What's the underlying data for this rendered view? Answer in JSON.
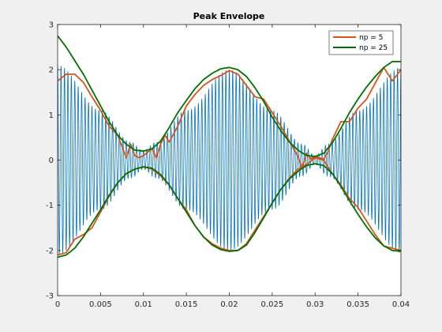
{
  "chart_data": {
    "type": "line",
    "title": "Peak Envelope",
    "xlabel": "",
    "ylabel": "",
    "xlim": [
      0,
      0.04
    ],
    "ylim": [
      -3,
      3
    ],
    "x_ticks": [
      "0",
      "0.005",
      "0.01",
      "0.015",
      "0.02",
      "0.025",
      "0.03",
      "0.035",
      "0.04"
    ],
    "y_ticks": [
      "-3",
      "-2",
      "-1",
      "0",
      "1",
      "2",
      "3"
    ],
    "grid": false,
    "legend_position": "top-right",
    "signal": {
      "description_values": "oscillating blue signal, carrier ~2500 Hz, AM envelope",
      "color": "#0072bd",
      "samples": [
        {
          "x": 0.0,
          "amp": 2.1
        },
        {
          "x": 0.005,
          "amp": 1.1
        },
        {
          "x": 0.0085,
          "amp": 0.4
        },
        {
          "x": 0.01,
          "amp": 0.2
        },
        {
          "x": 0.0115,
          "amp": 0.4
        },
        {
          "x": 0.015,
          "amp": 1.1
        },
        {
          "x": 0.02,
          "amp": 2.0
        },
        {
          "x": 0.025,
          "amp": 1.1
        },
        {
          "x": 0.0285,
          "amp": 0.35
        },
        {
          "x": 0.03,
          "amp": 0.1
        },
        {
          "x": 0.0315,
          "amp": 0.35
        },
        {
          "x": 0.035,
          "amp": 1.1
        },
        {
          "x": 0.04,
          "amp": 2.05
        }
      ]
    },
    "series": [
      {
        "name": "np = 5",
        "color": "#d95319",
        "upper": [
          [
            0.0,
            1.75
          ],
          [
            0.001,
            1.9
          ],
          [
            0.002,
            1.9
          ],
          [
            0.003,
            1.72
          ],
          [
            0.004,
            1.4
          ],
          [
            0.005,
            1.1
          ],
          [
            0.006,
            0.75
          ],
          [
            0.007,
            0.55
          ],
          [
            0.0075,
            0.3
          ],
          [
            0.008,
            0.05
          ],
          [
            0.0085,
            0.35
          ],
          [
            0.009,
            0.1
          ],
          [
            0.0095,
            0.05
          ],
          [
            0.01,
            0.1
          ],
          [
            0.011,
            0.25
          ],
          [
            0.0115,
            0.05
          ],
          [
            0.012,
            0.35
          ],
          [
            0.0125,
            0.55
          ],
          [
            0.013,
            0.4
          ],
          [
            0.014,
            0.75
          ],
          [
            0.015,
            1.2
          ],
          [
            0.016,
            1.45
          ],
          [
            0.017,
            1.65
          ],
          [
            0.018,
            1.78
          ],
          [
            0.019,
            1.87
          ],
          [
            0.02,
            1.98
          ],
          [
            0.021,
            1.9
          ],
          [
            0.022,
            1.65
          ],
          [
            0.023,
            1.4
          ],
          [
            0.024,
            1.35
          ],
          [
            0.025,
            1.05
          ],
          [
            0.026,
            0.75
          ],
          [
            0.027,
            0.42
          ],
          [
            0.028,
            0.08
          ],
          [
            0.0285,
            -0.18
          ],
          [
            0.029,
            0.15
          ],
          [
            0.0295,
            0.02
          ],
          [
            0.03,
            0.08
          ],
          [
            0.031,
            0.02
          ],
          [
            0.0315,
            0.18
          ],
          [
            0.032,
            0.45
          ],
          [
            0.033,
            0.85
          ],
          [
            0.034,
            0.85
          ],
          [
            0.035,
            1.15
          ],
          [
            0.036,
            1.35
          ],
          [
            0.037,
            1.7
          ],
          [
            0.038,
            2.05
          ],
          [
            0.0385,
            1.9
          ],
          [
            0.039,
            1.75
          ],
          [
            0.04,
            2.0
          ]
        ],
        "lower": [
          [
            0.0,
            -2.1
          ],
          [
            0.001,
            -2.05
          ],
          [
            0.002,
            -1.75
          ],
          [
            0.003,
            -1.65
          ],
          [
            0.004,
            -1.5
          ],
          [
            0.005,
            -1.15
          ],
          [
            0.006,
            -0.8
          ],
          [
            0.007,
            -0.5
          ],
          [
            0.008,
            -0.3
          ],
          [
            0.009,
            -0.2
          ],
          [
            0.01,
            -0.15
          ],
          [
            0.011,
            -0.2
          ],
          [
            0.012,
            -0.35
          ],
          [
            0.013,
            -0.55
          ],
          [
            0.014,
            -0.85
          ],
          [
            0.015,
            -1.1
          ],
          [
            0.016,
            -1.45
          ],
          [
            0.017,
            -1.7
          ],
          [
            0.018,
            -1.85
          ],
          [
            0.019,
            -1.95
          ],
          [
            0.02,
            -2.0
          ],
          [
            0.021,
            -2.0
          ],
          [
            0.022,
            -1.85
          ],
          [
            0.023,
            -1.55
          ],
          [
            0.024,
            -1.25
          ],
          [
            0.025,
            -0.95
          ],
          [
            0.026,
            -0.65
          ],
          [
            0.027,
            -0.4
          ],
          [
            0.028,
            -0.2
          ],
          [
            0.029,
            -0.1
          ],
          [
            0.03,
            0.05
          ],
          [
            0.031,
            0.0
          ],
          [
            0.032,
            -0.3
          ],
          [
            0.033,
            -0.55
          ],
          [
            0.034,
            -0.85
          ],
          [
            0.035,
            -1.05
          ],
          [
            0.036,
            -1.35
          ],
          [
            0.037,
            -1.65
          ],
          [
            0.038,
            -1.9
          ],
          [
            0.039,
            -1.95
          ],
          [
            0.04,
            -2.0
          ]
        ]
      },
      {
        "name": "np = 25",
        "color": "#007100",
        "upper": [
          [
            0.0,
            2.75
          ],
          [
            0.001,
            2.5
          ],
          [
            0.002,
            2.2
          ],
          [
            0.003,
            1.9
          ],
          [
            0.004,
            1.55
          ],
          [
            0.005,
            1.2
          ],
          [
            0.006,
            0.85
          ],
          [
            0.007,
            0.55
          ],
          [
            0.008,
            0.35
          ],
          [
            0.009,
            0.22
          ],
          [
            0.01,
            0.2
          ],
          [
            0.011,
            0.25
          ],
          [
            0.012,
            0.42
          ],
          [
            0.013,
            0.72
          ],
          [
            0.014,
            1.05
          ],
          [
            0.015,
            1.32
          ],
          [
            0.016,
            1.58
          ],
          [
            0.017,
            1.78
          ],
          [
            0.018,
            1.92
          ],
          [
            0.019,
            2.02
          ],
          [
            0.02,
            2.05
          ],
          [
            0.021,
            2.0
          ],
          [
            0.022,
            1.85
          ],
          [
            0.023,
            1.6
          ],
          [
            0.024,
            1.3
          ],
          [
            0.025,
            0.95
          ],
          [
            0.026,
            0.65
          ],
          [
            0.027,
            0.4
          ],
          [
            0.028,
            0.22
          ],
          [
            0.029,
            0.1
          ],
          [
            0.03,
            0.08
          ],
          [
            0.031,
            0.15
          ],
          [
            0.032,
            0.38
          ],
          [
            0.033,
            0.7
          ],
          [
            0.034,
            1.05
          ],
          [
            0.035,
            1.35
          ],
          [
            0.036,
            1.62
          ],
          [
            0.037,
            1.85
          ],
          [
            0.038,
            2.05
          ],
          [
            0.039,
            2.18
          ],
          [
            0.04,
            2.18
          ]
        ],
        "lower": [
          [
            0.0,
            -2.15
          ],
          [
            0.001,
            -2.1
          ],
          [
            0.002,
            -1.95
          ],
          [
            0.003,
            -1.7
          ],
          [
            0.004,
            -1.4
          ],
          [
            0.005,
            -1.1
          ],
          [
            0.006,
            -0.78
          ],
          [
            0.007,
            -0.5
          ],
          [
            0.008,
            -0.3
          ],
          [
            0.009,
            -0.2
          ],
          [
            0.01,
            -0.15
          ],
          [
            0.011,
            -0.18
          ],
          [
            0.012,
            -0.32
          ],
          [
            0.013,
            -0.55
          ],
          [
            0.014,
            -0.85
          ],
          [
            0.015,
            -1.15
          ],
          [
            0.016,
            -1.45
          ],
          [
            0.017,
            -1.7
          ],
          [
            0.018,
            -1.88
          ],
          [
            0.019,
            -1.98
          ],
          [
            0.02,
            -2.02
          ],
          [
            0.021,
            -2.0
          ],
          [
            0.022,
            -1.88
          ],
          [
            0.023,
            -1.6
          ],
          [
            0.024,
            -1.28
          ],
          [
            0.025,
            -0.95
          ],
          [
            0.026,
            -0.65
          ],
          [
            0.027,
            -0.42
          ],
          [
            0.028,
            -0.25
          ],
          [
            0.029,
            -0.12
          ],
          [
            0.03,
            -0.08
          ],
          [
            0.031,
            -0.12
          ],
          [
            0.032,
            -0.3
          ],
          [
            0.033,
            -0.58
          ],
          [
            0.034,
            -0.9
          ],
          [
            0.035,
            -1.2
          ],
          [
            0.036,
            -1.48
          ],
          [
            0.037,
            -1.72
          ],
          [
            0.038,
            -1.9
          ],
          [
            0.039,
            -2.0
          ],
          [
            0.04,
            -2.02
          ]
        ]
      }
    ]
  }
}
